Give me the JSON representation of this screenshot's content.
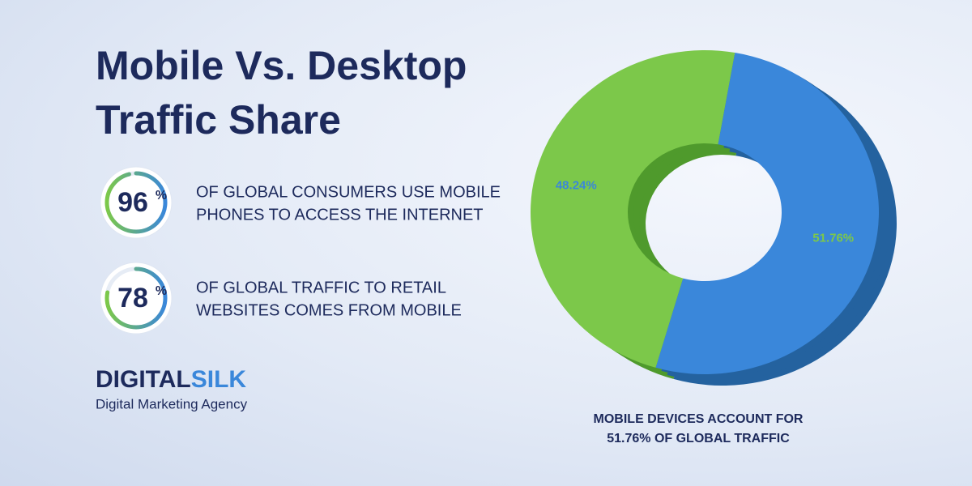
{
  "title": [
    "Mobile Vs. Desktop",
    "Traffic Share"
  ],
  "stats": [
    {
      "value": 96,
      "unit": "%",
      "lines": [
        "OF GLOBAL CONSUMERS USE MOBILE",
        "PHONES TO ACCESS THE INTERNET"
      ]
    },
    {
      "value": 78,
      "unit": "%",
      "lines": [
        "OF GLOBAL TRAFFIC TO RETAIL",
        "WEBSITES COMES FROM MOBILE"
      ]
    }
  ],
  "brand": {
    "name": [
      "DIGITAL",
      "SILK"
    ],
    "tagline": "Digital Marketing Agency"
  },
  "chart_data": {
    "type": "pie",
    "donut": true,
    "values": [
      48.24,
      51.76
    ],
    "value_labels": [
      "48.24%",
      "51.76%"
    ],
    "colors": [
      "#7cc84a",
      "#3a87da"
    ],
    "caption": [
      "MOBILE DEVICES ACCOUNT FOR",
      "51.76% OF GLOBAL TRAFFIC"
    ]
  }
}
